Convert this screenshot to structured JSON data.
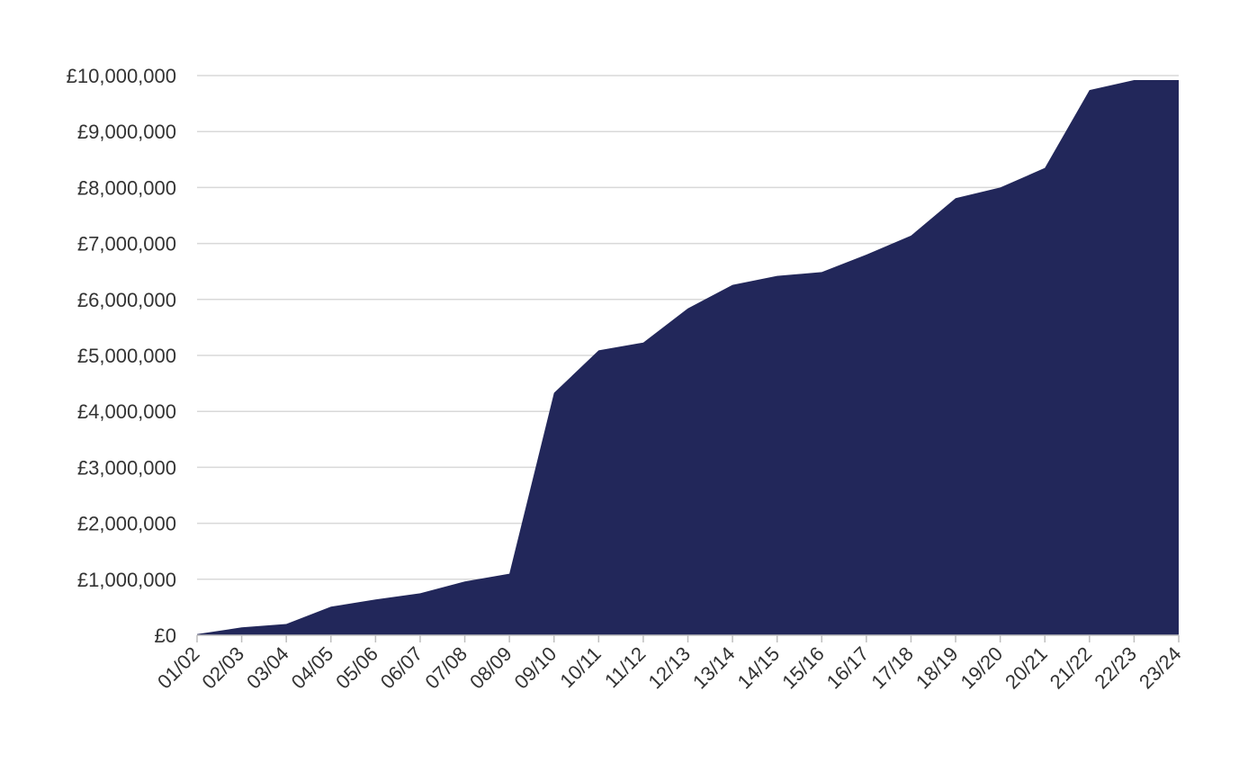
{
  "chart_data": {
    "type": "area",
    "title": "",
    "xlabel": "",
    "ylabel": "",
    "categories": [
      "01/02",
      "02/03",
      "03/04",
      "04/05",
      "05/06",
      "06/07",
      "07/08",
      "08/09",
      "09/10",
      "10/11",
      "11/12",
      "12/13",
      "13/14",
      "14/15",
      "15/16",
      "16/17",
      "17/18",
      "18/19",
      "19/20",
      "20/21",
      "21/22",
      "22/23",
      "23/24"
    ],
    "series": [
      {
        "values": [
          20000,
          140000,
          200000,
          510000,
          640000,
          750000,
          960000,
          1100000,
          4330000,
          5090000,
          5230000,
          5840000,
          6260000,
          6420000,
          6490000,
          6800000,
          7140000,
          7810000,
          8000000,
          8350000,
          9740000,
          9920000,
          9920000
        ],
        "color": "#22275a"
      }
    ],
    "ylim": [
      0,
      10000000
    ],
    "yticks": [
      0,
      1000000,
      2000000,
      3000000,
      4000000,
      5000000,
      6000000,
      7000000,
      8000000,
      9000000,
      10000000
    ],
    "ytick_labels": [
      "£0",
      "£1,000,000",
      "£2,000,000",
      "£3,000,000",
      "£4,000,000",
      "£5,000,000",
      "£6,000,000",
      "£7,000,000",
      "£8,000,000",
      "£9,000,000",
      "£10,000,000"
    ],
    "grid": true,
    "legend": "none"
  }
}
